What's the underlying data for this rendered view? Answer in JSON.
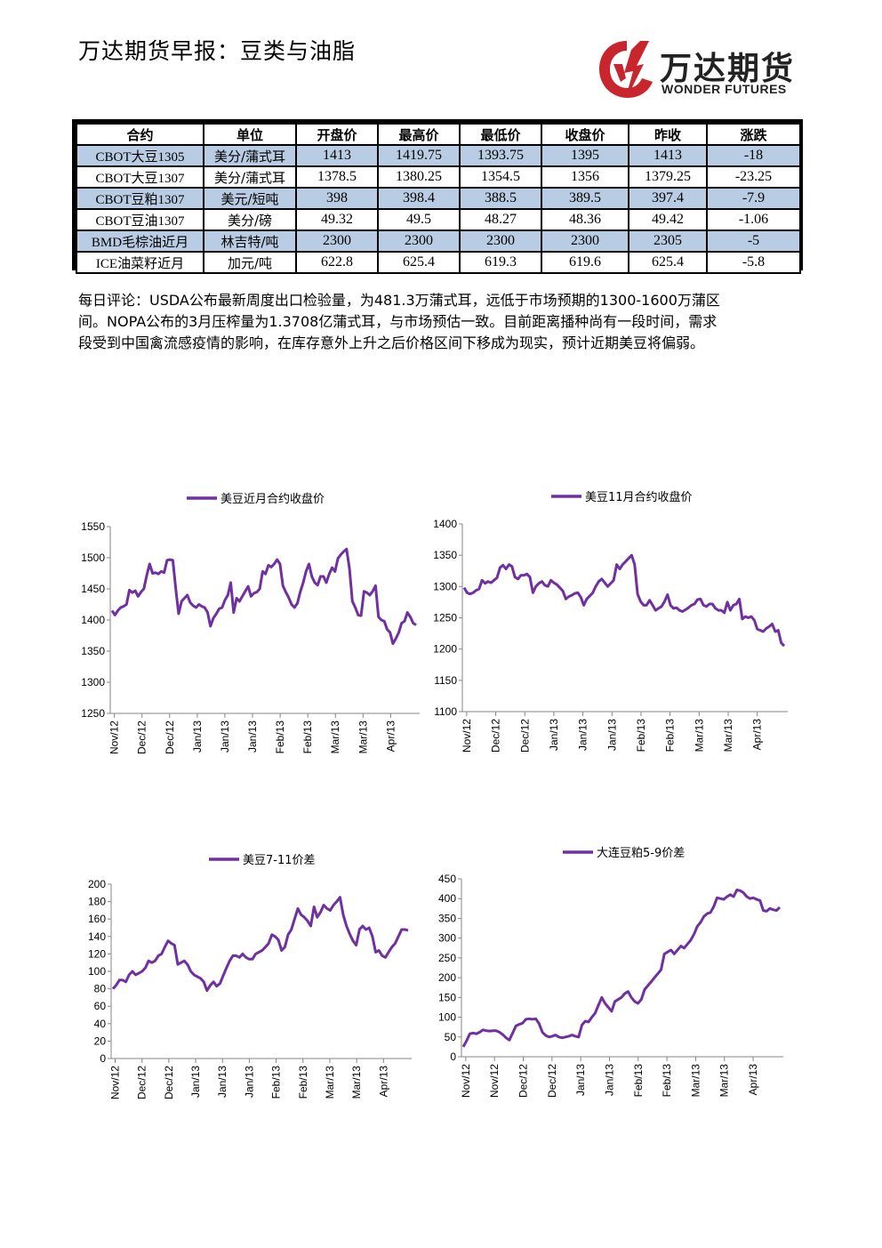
{
  "header": {
    "title": "万达期货早报：豆类与油脂",
    "logo_cn": "万达期货",
    "logo_en": "WONDER FUTURES",
    "logo_color": "#c8252c"
  },
  "table": {
    "headers": [
      "合约",
      "单位",
      "开盘价",
      "最高价",
      "最低价",
      "收盘价",
      "昨收",
      "涨跌"
    ],
    "rows": [
      [
        "CBOT大豆1305",
        "美分/蒲式耳",
        "1413",
        "1419.75",
        "1393.75",
        "1395",
        "1413",
        "-18"
      ],
      [
        "CBOT大豆1307",
        "美分/蒲式耳",
        "1378.5",
        "1380.25",
        "1354.5",
        "1356",
        "1379.25",
        "-23.25"
      ],
      [
        "CBOT豆粕1307",
        "美元/短吨",
        "398",
        "398.4",
        "388.5",
        "389.5",
        "397.4",
        "-7.9"
      ],
      [
        "CBOT豆油1307",
        "美分/磅",
        "49.32",
        "49.5",
        "48.27",
        "48.36",
        "49.42",
        "-1.06"
      ],
      [
        "BMD毛棕油近月",
        "林吉特/吨",
        "2300",
        "2300",
        "2300",
        "2300",
        "2305",
        "-5"
      ],
      [
        "ICE油菜籽近月",
        "加元/吨",
        "622.8",
        "625.4",
        "619.3",
        "619.6",
        "625.4",
        "-5.8"
      ]
    ],
    "shade_color": "#b8cce4"
  },
  "comment": {
    "lines": [
      "每日评论：USDA公布最新周度出口检验量，为481.3万蒲式耳，远低于市场预期的1300-1600万蒲区",
      "间。NOPA公布的3月压榨量为1.3708亿蒲式耳，与市场预估一致。目前距离播种尚有一段时间，需求",
      "段受到中国禽流感疫情的影响，在库存意外上升之后价格区间下移成为现实，预计近期美豆将偏弱。"
    ]
  },
  "chart_data": [
    {
      "type": "line",
      "series": [
        {
          "name": "美豆近月合约收盘价",
          "color": "#7030a0",
          "values": [
            1415,
            1408,
            1415,
            1420,
            1422,
            1425,
            1448,
            1444,
            1447,
            1438,
            1445,
            1450,
            1472,
            1490,
            1475,
            1476,
            1474,
            1478,
            1476,
            1496,
            1497,
            1496,
            1450,
            1410,
            1430,
            1435,
            1440,
            1428,
            1423,
            1420,
            1425,
            1422,
            1420,
            1412,
            1390,
            1403,
            1410,
            1418,
            1420,
            1432,
            1440,
            1460,
            1412,
            1435,
            1430,
            1438,
            1446,
            1454,
            1438,
            1443,
            1445,
            1450,
            1478,
            1474,
            1488,
            1485,
            1490,
            1497,
            1490,
            1455,
            1445,
            1436,
            1425,
            1420,
            1427,
            1445,
            1460,
            1478,
            1490,
            1470,
            1460,
            1456,
            1470,
            1470,
            1460,
            1474,
            1484,
            1478,
            1499,
            1505,
            1510,
            1514,
            1482,
            1430,
            1420,
            1408,
            1407,
            1446,
            1444,
            1440,
            1446,
            1455,
            1405,
            1400,
            1398,
            1385,
            1380,
            1362,
            1370,
            1380,
            1395,
            1398,
            1412,
            1405,
            1395,
            1392
          ]
        }
      ],
      "x_labels": [
        "Nov/12",
        "Dec/12",
        "Dec/12",
        "Jan/13",
        "Jan/13",
        "Jan/13",
        "Feb/13",
        "Feb/13",
        "Mar/13",
        "Mar/13",
        "Apr/13"
      ],
      "ylim": [
        1250,
        1550
      ],
      "yticks": [
        1250,
        1300,
        1350,
        1400,
        1450,
        1500,
        1550
      ]
    },
    {
      "type": "line",
      "series": [
        {
          "name": "美豆11月合约收盘价",
          "color": "#7030a0",
          "values": [
            1298,
            1290,
            1288,
            1290,
            1294,
            1296,
            1310,
            1305,
            1308,
            1306,
            1310,
            1314,
            1330,
            1334,
            1328,
            1335,
            1332,
            1315,
            1312,
            1318,
            1318,
            1320,
            1315,
            1290,
            1300,
            1305,
            1308,
            1302,
            1300,
            1310,
            1306,
            1303,
            1298,
            1293,
            1280,
            1284,
            1286,
            1289,
            1290,
            1283,
            1270,
            1280,
            1285,
            1290,
            1300,
            1308,
            1312,
            1306,
            1300,
            1305,
            1310,
            1335,
            1328,
            1335,
            1340,
            1345,
            1350,
            1335,
            1288,
            1276,
            1270,
            1270,
            1278,
            1270,
            1262,
            1265,
            1268,
            1276,
            1287,
            1270,
            1265,
            1266,
            1262,
            1260,
            1263,
            1266,
            1270,
            1272,
            1279,
            1280,
            1270,
            1268,
            1272,
            1272,
            1265,
            1262,
            1262,
            1258,
            1275,
            1262,
            1270,
            1272,
            1280,
            1248,
            1252,
            1250,
            1252,
            1246,
            1232,
            1230,
            1228,
            1233,
            1236,
            1240,
            1228,
            1230,
            1210,
            1205
          ]
        }
      ],
      "x_labels": [
        "Nov/12",
        "Dec/12",
        "Dec/12",
        "Jan/13",
        "Jan/13",
        "Jan/13",
        "Feb/13",
        "Feb/13",
        "Mar/13",
        "Mar/13",
        "Apr/13"
      ],
      "ylim": [
        1100,
        1400
      ],
      "yticks": [
        1100,
        1150,
        1200,
        1250,
        1300,
        1350,
        1400
      ]
    },
    {
      "type": "line",
      "series": [
        {
          "name": "美豆7-11价差",
          "color": "#7030a0",
          "values": [
            80,
            84,
            90,
            90,
            88,
            96,
            100,
            96,
            98,
            100,
            104,
            112,
            110,
            112,
            118,
            120,
            128,
            135,
            132,
            130,
            108,
            110,
            112,
            108,
            100,
            96,
            94,
            92,
            88,
            78,
            84,
            88,
            83,
            86,
            95,
            104,
            112,
            118,
            118,
            116,
            120,
            116,
            114,
            114,
            120,
            122,
            124,
            128,
            132,
            142,
            140,
            136,
            124,
            128,
            142,
            148,
            160,
            172,
            165,
            162,
            158,
            152,
            174,
            162,
            168,
            176,
            172,
            170,
            176,
            180,
            185,
            165,
            152,
            143,
            135,
            130,
            148,
            152,
            148,
            150,
            140,
            122,
            124,
            118,
            116,
            122,
            128,
            132,
            140,
            148,
            148,
            147
          ]
        }
      ],
      "x_labels": [
        "Nov/12",
        "Dec/12",
        "Dec/12",
        "Jan/13",
        "Jan/13",
        "Jan/13",
        "Feb/13",
        "Feb/13",
        "Mar/13",
        "Mar/13",
        "Apr/13"
      ],
      "ylim": [
        0,
        200
      ],
      "yticks": [
        0,
        20,
        40,
        60,
        80,
        100,
        120,
        140,
        160,
        180,
        200
      ]
    },
    {
      "type": "line",
      "series": [
        {
          "name": "大连豆粕5-9价差",
          "color": "#7030a0",
          "values": [
            25,
            40,
            58,
            60,
            58,
            62,
            68,
            66,
            65,
            66,
            66,
            62,
            56,
            48,
            42,
            60,
            78,
            82,
            85,
            95,
            96,
            95,
            96,
            84,
            62,
            54,
            50,
            52,
            55,
            50,
            48,
            50,
            52,
            55,
            52,
            50,
            80,
            90,
            88,
            100,
            110,
            130,
            150,
            135,
            125,
            115,
            140,
            145,
            150,
            160,
            165,
            150,
            140,
            135,
            145,
            170,
            180,
            190,
            200,
            210,
            220,
            260,
            265,
            270,
            260,
            270,
            280,
            275,
            285,
            295,
            310,
            330,
            340,
            355,
            362,
            365,
            380,
            402,
            400,
            398,
            405,
            410,
            405,
            422,
            420,
            415,
            405,
            400,
            402,
            398,
            395,
            370,
            368,
            375,
            372,
            370,
            378
          ]
        }
      ],
      "x_labels": [
        "Nov/12",
        "Nov/12",
        "Dec/12",
        "Dec/12",
        "Jan/13",
        "Jan/13",
        "Feb/13",
        "Feb/13",
        "Mar/13",
        "Mar/13",
        "Apr/13"
      ],
      "ylim": [
        0,
        450
      ],
      "yticks": [
        0,
        50,
        100,
        150,
        200,
        250,
        300,
        350,
        400,
        450
      ]
    }
  ]
}
